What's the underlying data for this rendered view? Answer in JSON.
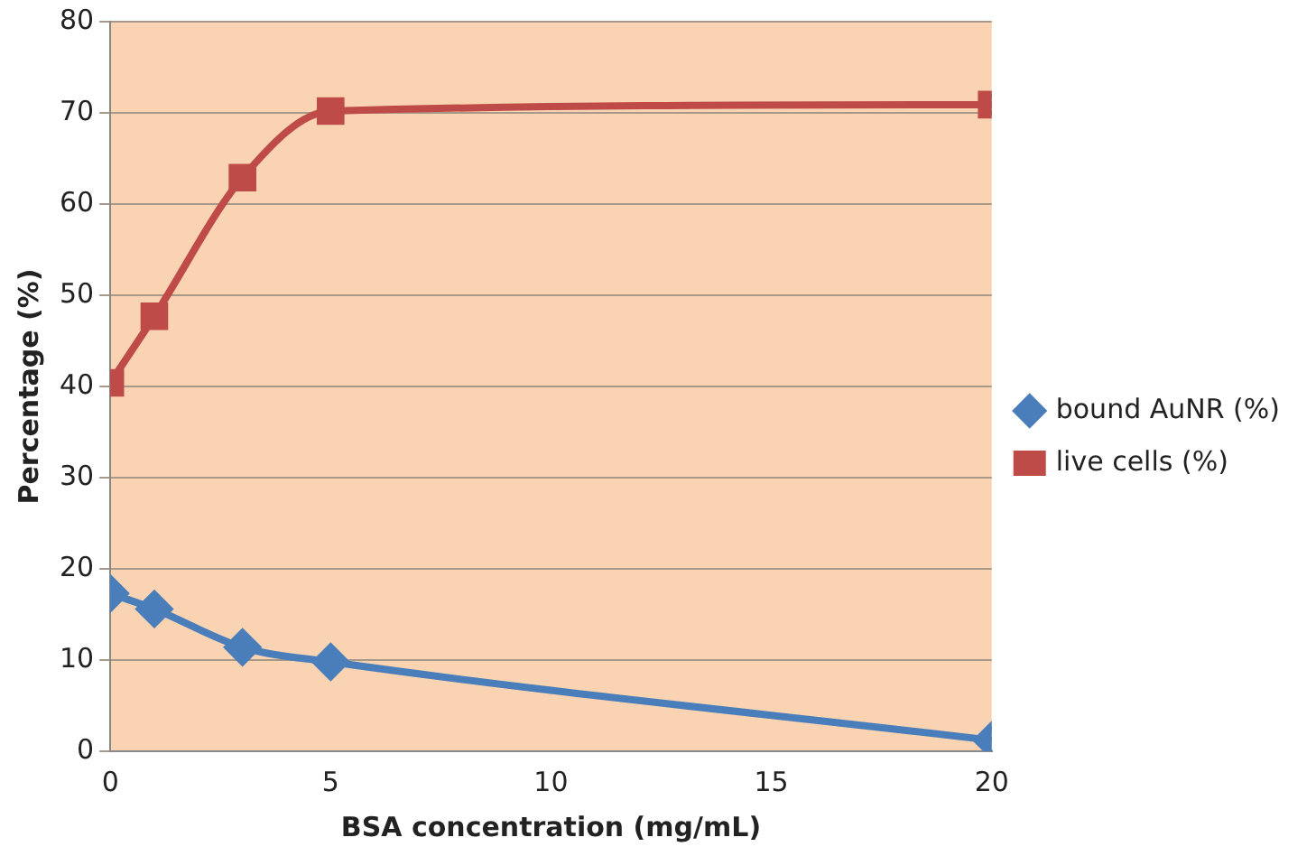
{
  "chart_data": {
    "type": "line",
    "xlabel": "BSA concentration (mg/mL)",
    "ylabel": "Percentage (%)",
    "xlim": [
      0,
      20
    ],
    "xticks": [
      0,
      5,
      10,
      15,
      20
    ],
    "ylim": [
      0,
      80
    ],
    "yticks": [
      0,
      10,
      20,
      30,
      40,
      50,
      60,
      70,
      80
    ],
    "grid": "y",
    "legend": "right",
    "series": [
      {
        "name": "bound AuNR (%)",
        "color": "#4a7ebb",
        "marker": "diamond",
        "x": [
          0,
          1,
          3,
          5,
          20
        ],
        "values": [
          17.3,
          15.6,
          11.4,
          9.8,
          1.2
        ]
      },
      {
        "name": "live cells (%)",
        "color": "#be4b48",
        "marker": "square",
        "x": [
          0,
          1,
          3,
          5,
          20
        ],
        "values": [
          40.4,
          47.7,
          62.9,
          70.2,
          70.9
        ]
      }
    ]
  }
}
